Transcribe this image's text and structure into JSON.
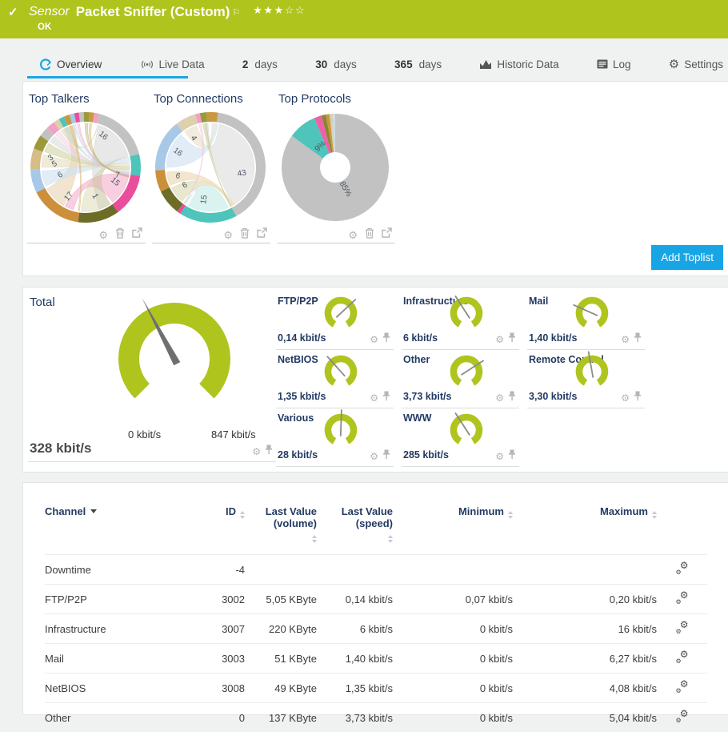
{
  "colors": {
    "header_green": "#b0c41e",
    "accent_blue": "#1aa6e2",
    "navy": "#233a62",
    "gauge_green": "#b0c41e",
    "needle_gray": "#6f6f6f"
  },
  "header": {
    "check_icon": "✓",
    "kind": "Sensor",
    "title": "Packet Sniffer (Custom)",
    "flag_icon": "⚐",
    "stars": "★★★☆☆",
    "status": "OK"
  },
  "tabs": [
    {
      "label": "Overview",
      "icon": "overview",
      "active": true
    },
    {
      "label": "Live Data",
      "icon": "live"
    },
    {
      "prefix": "2",
      "label": "days"
    },
    {
      "prefix": "30",
      "label": "days"
    },
    {
      "prefix": "365",
      "label": "days"
    },
    {
      "label": "Historic Data",
      "icon": "chart"
    },
    {
      "label": "Log",
      "icon": "log"
    },
    {
      "label": "Settings",
      "icon": "gear"
    }
  ],
  "toplists": {
    "items": [
      {
        "title": "Top Talkers"
      },
      {
        "title": "Top Connections"
      },
      {
        "title": "Top Protocols"
      }
    ],
    "add_button": "Add Toplist"
  },
  "gauges": {
    "total": {
      "label": "Total",
      "current": "328 kbit/s",
      "min": "0 kbit/s",
      "max": "847 kbit/s",
      "needle_deg": -28
    },
    "cells": [
      {
        "label": "FTP/P2P",
        "value": "0,14 kbit/s",
        "needle_deg": 47
      },
      {
        "label": "Infrastructure",
        "value": "6 kbit/s",
        "needle_deg": -33
      },
      {
        "label": "Mail",
        "value": "1,40 kbit/s",
        "needle_deg": -66
      },
      {
        "label": "NetBIOS",
        "value": "1,35 kbit/s",
        "needle_deg": -42
      },
      {
        "label": "Other",
        "value": "3,73 kbit/s",
        "needle_deg": 57
      },
      {
        "label": "Remote Control",
        "value": "3,30 kbit/s",
        "needle_deg": -10
      },
      {
        "label": "Various",
        "value": "28 kbit/s",
        "needle_deg": 2
      },
      {
        "label": "WWW",
        "value": "285 kbit/s",
        "needle_deg": -33
      }
    ]
  },
  "table": {
    "columns": [
      {
        "label": "Channel",
        "sorted": true
      },
      {
        "label": "ID",
        "sort": true
      },
      {
        "label": "Last Value",
        "label2": "(volume)",
        "sort": true
      },
      {
        "label": "Last Value",
        "label2": "(speed)",
        "sort": true
      },
      {
        "label": "Minimum",
        "sort": true
      },
      {
        "label": "Maximum",
        "sort": true
      },
      {
        "label": ""
      }
    ],
    "rows": [
      {
        "channel": "Downtime",
        "id": "-4",
        "volume": "",
        "speed": "",
        "min": "",
        "max": ""
      },
      {
        "channel": "FTP/P2P",
        "id": "3002",
        "volume": "5,05 KByte",
        "speed": "0,14 kbit/s",
        "min": "0,07 kbit/s",
        "max": "0,20 kbit/s"
      },
      {
        "channel": "Infrastructure",
        "id": "3007",
        "volume": "220 KByte",
        "speed": "6 kbit/s",
        "min": "0 kbit/s",
        "max": "16 kbit/s"
      },
      {
        "channel": "Mail",
        "id": "3003",
        "volume": "51 KByte",
        "speed": "1,40 kbit/s",
        "min": "0 kbit/s",
        "max": "6,27 kbit/s"
      },
      {
        "channel": "NetBIOS",
        "id": "3008",
        "volume": "49 KByte",
        "speed": "1,35 kbit/s",
        "min": "0 kbit/s",
        "max": "4,08 kbit/s"
      },
      {
        "channel": "Other",
        "id": "0",
        "volume": "137 KByte",
        "speed": "3,73 kbit/s",
        "min": "0 kbit/s",
        "max": "5,04 kbit/s"
      }
    ]
  },
  "chart_data": [
    {
      "id": "top-talkers",
      "type": "chord",
      "title": "Top Talkers",
      "segments": [
        {
          "c": "#c2c2c2",
          "a": 14,
          "b": 76
        },
        {
          "c": "#4fc4ba",
          "a": 76,
          "b": 99
        },
        {
          "c": "#ea4d9b",
          "a": 99,
          "b": 144
        },
        {
          "c": "#6d6d28",
          "a": 144,
          "b": 188
        },
        {
          "c": "#cc8f3a",
          "a": 188,
          "b": 243
        },
        {
          "c": "#a8c8e8",
          "a": 243,
          "b": 268
        },
        {
          "c": "#d6bd85",
          "a": 268,
          "b": 290
        },
        {
          "c": "#9a9a3d",
          "a": 290,
          "b": 305
        },
        {
          "c": "#c2c2c2",
          "a": 305,
          "b": 316
        },
        {
          "c": "#f2a0c4",
          "a": 316,
          "b": 325
        },
        {
          "c": "#ddd0ad",
          "a": 325,
          "b": 331
        },
        {
          "c": "#4fc4ba",
          "a": 331,
          "b": 337
        },
        {
          "c": "#c9993f",
          "a": 337,
          "b": 343
        },
        {
          "c": "#a8c8e8",
          "a": 343,
          "b": 348
        },
        {
          "c": "#ea4d9b",
          "a": 348,
          "b": 353
        },
        {
          "c": "#c2c2c2",
          "a": 353,
          "b": 358
        },
        {
          "c": "#9a9a3d",
          "a": 358,
          "b": 364
        },
        {
          "c": "#c9993f",
          "a": 364,
          "b": 369
        },
        {
          "c": "#f2a0c4",
          "a": 369,
          "b": 374
        }
      ],
      "ribbons": [
        {
          "a1": 18,
          "a2": 74,
          "b1": 146,
          "b2": 162,
          "c": "#d6d6d6",
          "o": 0.55
        },
        {
          "a1": 100,
          "a2": 142,
          "b1": 196,
          "b2": 208,
          "c": "#f2a0c4",
          "o": 0.5
        },
        {
          "a1": 210,
          "a2": 241,
          "b1": 330,
          "b2": 344,
          "c": "#e3c9a2",
          "o": 0.5
        },
        {
          "a1": 245,
          "a2": 265,
          "b1": 77,
          "b2": 83,
          "c": "#cfe0f0",
          "o": 0.6
        },
        {
          "a1": 270,
          "a2": 287,
          "b1": 84,
          "b2": 88,
          "c": "#e6dcc0",
          "o": 0.6
        },
        {
          "a1": 291,
          "a2": 303,
          "b1": 89,
          "b2": 93,
          "c": "#d2d2a0",
          "o": 0.6
        },
        {
          "a1": 306,
          "a2": 315,
          "b1": 94,
          "b2": 97,
          "c": "#d6d6d6",
          "o": 0.5
        },
        {
          "a1": 146,
          "a2": 186,
          "b1": 75,
          "b2": 76,
          "c": "#c9c98f",
          "o": 0.35
        },
        {
          "a1": 317,
          "a2": 324,
          "b1": 97,
          "b2": 98,
          "c": "#f2c0d8",
          "o": 0.4
        },
        {
          "a1": 326,
          "a2": 330,
          "b1": 16,
          "b2": 17,
          "c": "#d8cda8",
          "o": 0.4
        },
        {
          "a1": 332,
          "a2": 336,
          "b1": 98,
          "b2": 99,
          "c": "#9fd8d2",
          "o": 0.4
        },
        {
          "a1": 338,
          "a2": 342,
          "b1": 188,
          "b2": 190,
          "c": "#d2b06a",
          "o": 0.4
        },
        {
          "a1": 344,
          "a2": 347,
          "b1": 99,
          "b2": 100,
          "c": "#bcd4ea",
          "o": 0.4
        },
        {
          "a1": 349,
          "a2": 352,
          "b1": 100,
          "b2": 101,
          "c": "#eaa0c6",
          "o": 0.4
        },
        {
          "a1": 359,
          "a2": 363,
          "b1": 101,
          "b2": 102,
          "c": "#b0b06a",
          "o": 0.4
        },
        {
          "a1": 365,
          "a2": 368,
          "b1": 102,
          "b2": 103,
          "c": "#d2b06a",
          "o": 0.4
        }
      ],
      "labels": [
        {
          "t": "16",
          "a": 29,
          "r": 45,
          "rot": 40
        },
        {
          "t": "7",
          "a": 104,
          "r": 41,
          "rot": 8
        },
        {
          "t": "15",
          "a": 116,
          "r": 41,
          "rot": 40
        },
        {
          "t": "1",
          "a": 162,
          "r": 38,
          "rot": 60
        },
        {
          "t": "17",
          "a": 210,
          "r": 42,
          "rot": -50
        },
        {
          "t": "6",
          "a": 253,
          "r": 33,
          "rot": -30
        },
        {
          "t": "5",
          "a": 276,
          "r": 39,
          "rot": -30
        },
        {
          "t": "3",
          "a": 285,
          "r": 45,
          "rot": -35
        }
      ]
    },
    {
      "id": "top-connections",
      "type": "chord",
      "title": "Top Connections",
      "segments": [
        {
          "c": "#c2c2c2",
          "a": 8,
          "b": 152
        },
        {
          "c": "#4fc4ba",
          "a": 152,
          "b": 213
        },
        {
          "c": "#ea4d9b",
          "a": 213,
          "b": 217
        },
        {
          "c": "#6d6d28",
          "a": 217,
          "b": 244
        },
        {
          "c": "#cc8f3a",
          "a": 244,
          "b": 267
        },
        {
          "c": "#a8c8e8",
          "a": 267,
          "b": 322
        },
        {
          "c": "#ddd0ad",
          "a": 322,
          "b": 344
        },
        {
          "c": "#f2a0c4",
          "a": 344,
          "b": 349
        },
        {
          "c": "#9a9a3d",
          "a": 349,
          "b": 356
        },
        {
          "c": "#c9993f",
          "a": 356,
          "b": 368
        }
      ],
      "ribbons": [
        {
          "a1": 12,
          "a2": 148,
          "b1": 353,
          "b2": 357,
          "c": "#dcdcdc",
          "o": 0.6
        },
        {
          "a1": 156,
          "a2": 210,
          "b1": 214,
          "b2": 216,
          "c": "#c2ebe7",
          "o": 0.6
        },
        {
          "a1": 220,
          "a2": 242,
          "b1": 150,
          "b2": 152,
          "c": "#d2d2a0",
          "o": 0.5
        },
        {
          "a1": 246,
          "a2": 264,
          "b1": 148,
          "b2": 150,
          "c": "#ead2a4",
          "o": 0.55
        },
        {
          "a1": 270,
          "a2": 318,
          "b1": 6,
          "b2": 10,
          "c": "#cfe0f0",
          "o": 0.6
        },
        {
          "a1": 324,
          "a2": 342,
          "b1": 2,
          "b2": 5,
          "c": "#e8e0c6",
          "o": 0.6
        },
        {
          "a1": 345,
          "a2": 348,
          "b1": 216,
          "b2": 217,
          "c": "#f2c0d8",
          "o": 0.4
        },
        {
          "a1": 350,
          "a2": 355,
          "b1": 152,
          "b2": 153,
          "c": "#c0c080",
          "o": 0.4
        }
      ],
      "labels": [
        {
          "t": "43",
          "a": 101,
          "r": 40,
          "rot": -10
        },
        {
          "t": "16",
          "a": 295,
          "r": 45,
          "rot": 35
        },
        {
          "t": "4",
          "a": 330,
          "r": 42,
          "rot": 55
        },
        {
          "t": "6",
          "a": 255,
          "r": 42,
          "rot": 15
        },
        {
          "t": "6",
          "a": 235,
          "r": 39,
          "rot": -25
        },
        {
          "t": "15",
          "a": 191,
          "r": 41,
          "rot": -80
        }
      ]
    },
    {
      "id": "top-protocols",
      "type": "donut",
      "title": "Top Protocols",
      "segments": [
        {
          "c": "#c2c2c2",
          "a": 0,
          "b": 306
        },
        {
          "c": "#4fc4ba",
          "a": 306,
          "b": 337
        },
        {
          "c": "#f060a8",
          "a": 337,
          "b": 345
        },
        {
          "c": "#87872f",
          "a": 345,
          "b": 350
        },
        {
          "c": "#c9993f",
          "a": 350,
          "b": 354
        },
        {
          "c": "#d8d0b8",
          "a": 354,
          "b": 357.5
        },
        {
          "c": "#ccdce8",
          "a": 357.5,
          "b": 360
        }
      ],
      "labels": [
        {
          "t": "85%",
          "a": 155,
          "r": 30,
          "rot": 60
        },
        {
          "t": "9%",
          "a": 325,
          "r": 32,
          "rot": -45
        }
      ]
    }
  ]
}
